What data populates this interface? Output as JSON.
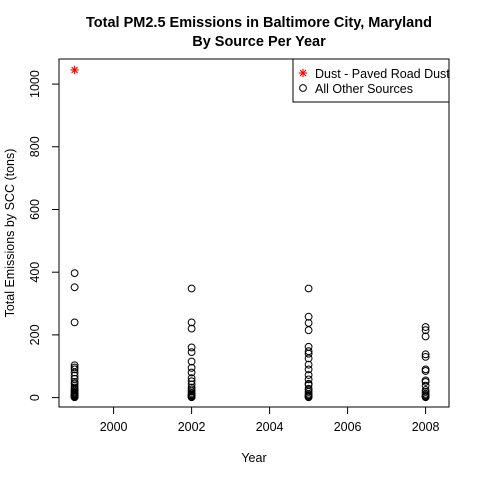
{
  "chart_data": {
    "type": "scatter",
    "title_lines": [
      "Total PM2.5 Emissions in Baltimore City, Maryland",
      "By Source Per Year"
    ],
    "xlabel": "Year",
    "ylabel": "Total Emissions by SCC (tons)",
    "xlim": [
      1998.6,
      2008.6
    ],
    "ylim": [
      -30,
      1080
    ],
    "xticks": [
      2000,
      2002,
      2004,
      2006,
      2008
    ],
    "yticks": [
      0,
      200,
      400,
      600,
      800,
      1000
    ],
    "grid": false,
    "legend_position": "top-right",
    "series": [
      {
        "name": "Dust - Paved Road Dust",
        "marker": "asterisk",
        "color": "#ff0000",
        "x": [
          1999
        ],
        "y": [
          1045
        ]
      },
      {
        "name": "All Other Sources",
        "marker": "open-circle",
        "color": "#000000",
        "x": [
          1999,
          1999,
          1999,
          1999,
          1999,
          1999,
          1999,
          1999,
          1999,
          1999,
          1999,
          1999,
          1999,
          1999,
          1999,
          1999,
          1999,
          1999,
          1999,
          1999,
          1999,
          1999,
          1999,
          1999,
          1999,
          2002,
          2002,
          2002,
          2002,
          2002,
          2002,
          2002,
          2002,
          2002,
          2002,
          2002,
          2002,
          2002,
          2002,
          2002,
          2002,
          2002,
          2002,
          2002,
          2002,
          2002,
          2005,
          2005,
          2005,
          2005,
          2005,
          2005,
          2005,
          2005,
          2005,
          2005,
          2005,
          2005,
          2005,
          2005,
          2005,
          2005,
          2005,
          2005,
          2005,
          2005,
          2005,
          2005,
          2005,
          2008,
          2008,
          2008,
          2008,
          2008,
          2008,
          2008,
          2008,
          2008,
          2008,
          2008,
          2008,
          2008,
          2008,
          2008,
          2008,
          2008
        ],
        "y": [
          397,
          352,
          240,
          103,
          96,
          90,
          80,
          70,
          60,
          50,
          45,
          38,
          32,
          27,
          22,
          18,
          15,
          12,
          10,
          8,
          6,
          4,
          3,
          2,
          1,
          348,
          240,
          220,
          160,
          145,
          115,
          95,
          80,
          62,
          52,
          42,
          32,
          26,
          20,
          15,
          11,
          8,
          6,
          4,
          2,
          1,
          348,
          258,
          238,
          215,
          162,
          148,
          140,
          125,
          105,
          90,
          72,
          58,
          44,
          40,
          28,
          24,
          18,
          12,
          8,
          5,
          3,
          2,
          1,
          225,
          215,
          195,
          138,
          130,
          90,
          85,
          55,
          50,
          38,
          24,
          18,
          12,
          8,
          5,
          3,
          1
        ]
      }
    ]
  }
}
